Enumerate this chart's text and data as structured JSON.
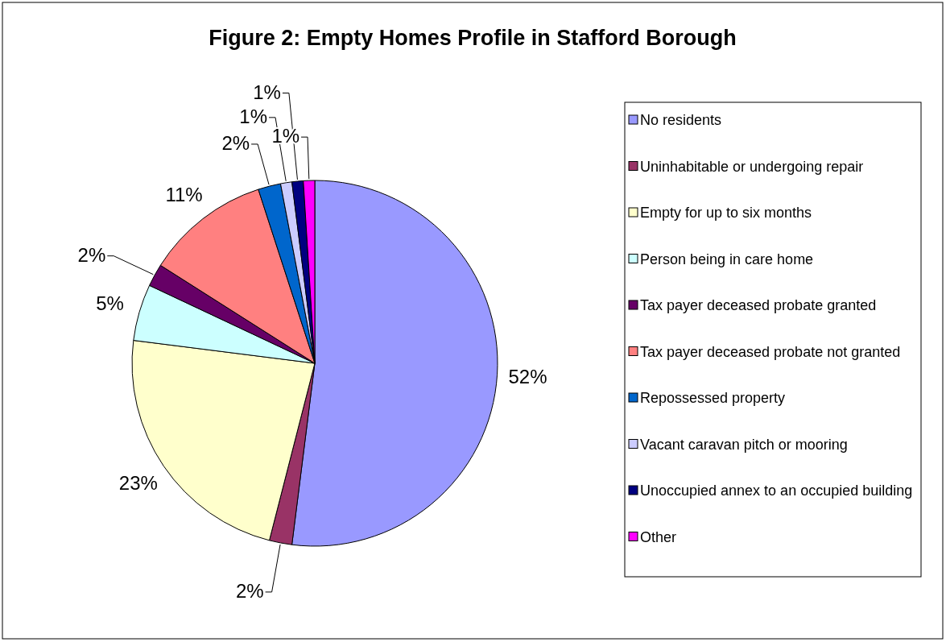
{
  "chart_data": {
    "type": "pie",
    "title": "Figure 2: Empty Homes Profile in Stafford Borough",
    "categories": [
      "No residents",
      "Uninhabitable or undergoing repair",
      "Empty for up to six months",
      "Person being in care home",
      "Tax payer deceased probate granted",
      "Tax payer deceased probate not granted",
      "Repossessed property",
      "Vacant caravan pitch or mooring",
      "Unoccupied annex to an occupied building",
      "Other"
    ],
    "values": [
      52,
      2,
      23,
      5,
      2,
      11,
      2,
      1,
      1,
      1
    ],
    "value_labels": [
      "52%",
      "2%",
      "23%",
      "5%",
      "2%",
      "11%",
      "2%",
      "1%",
      "1%",
      "1%"
    ],
    "colors": [
      "#9999ff",
      "#993366",
      "#ffffcc",
      "#ccffff",
      "#660066",
      "#ff8080",
      "#0066cc",
      "#ccccff",
      "#000080",
      "#ff00ff"
    ],
    "legend": "right"
  }
}
